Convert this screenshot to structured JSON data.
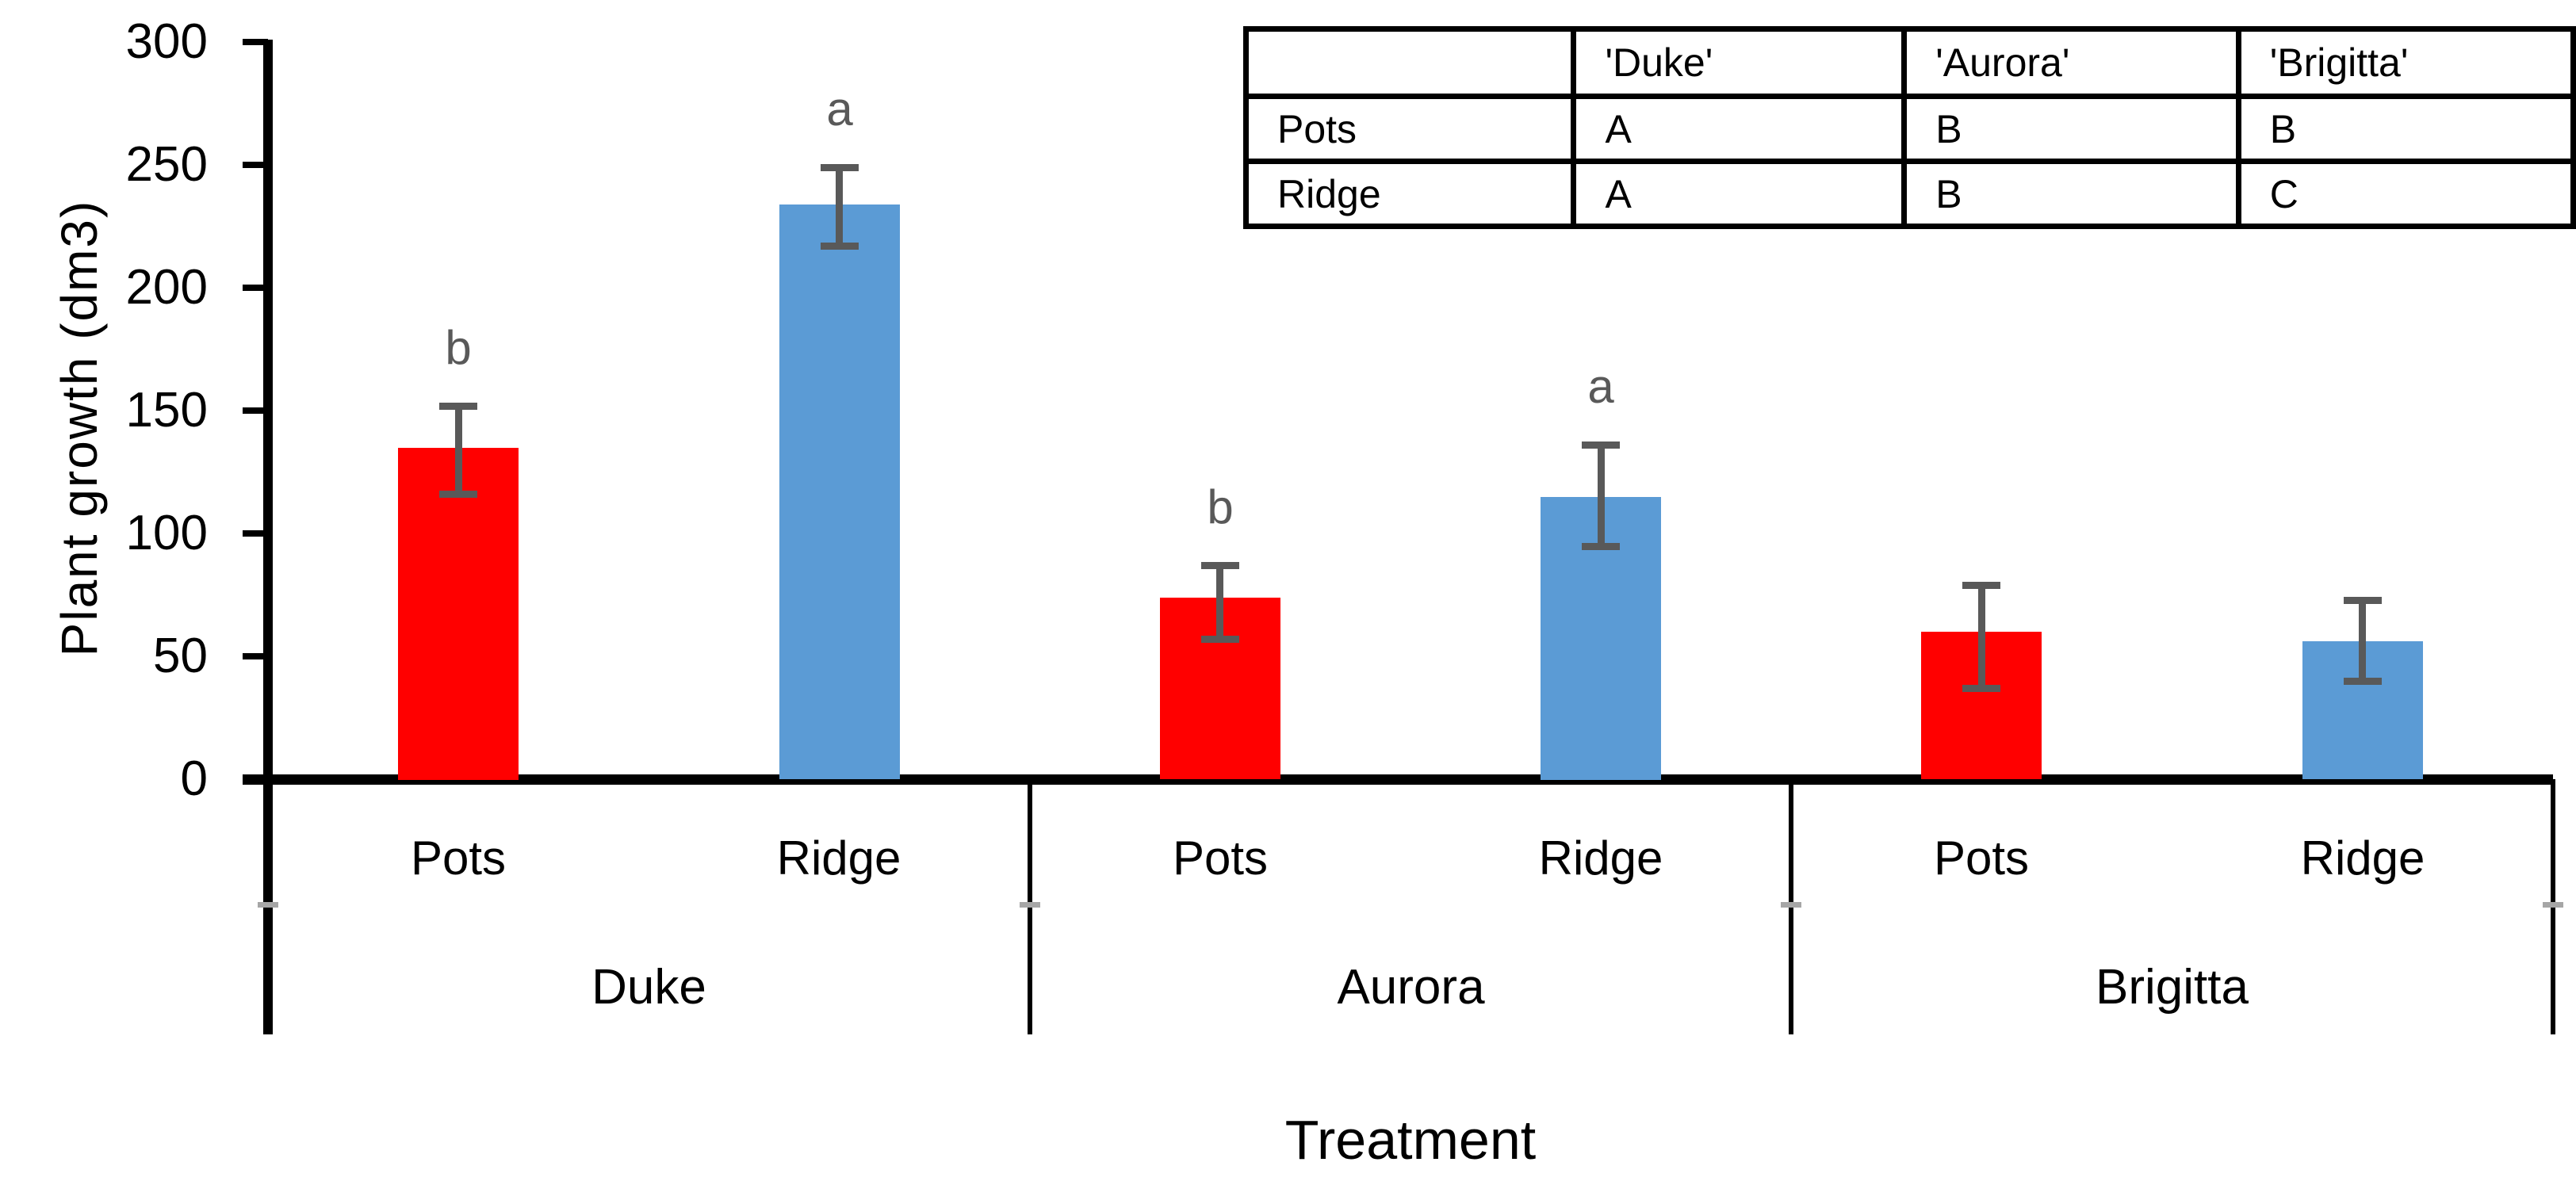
{
  "chart_data": {
    "type": "bar",
    "title": "",
    "xlabel": "Treatment",
    "ylabel": "Plant growth (dm3)",
    "ylim": [
      0,
      300
    ],
    "ytick_step": 50,
    "yticks": [
      0,
      50,
      100,
      150,
      200,
      250,
      300
    ],
    "grid": false,
    "legend": "none",
    "groups": [
      "Duke",
      "Aurora",
      "Brigitta"
    ],
    "subcategories": [
      "Pots",
      "Ridge"
    ],
    "series": [
      {
        "name": "Pots",
        "color": "#FF0000",
        "values": [
          135,
          74,
          60
        ],
        "error_low": [
          116,
          57,
          37
        ],
        "error_high": [
          152,
          87,
          79
        ],
        "letters": [
          "b",
          "b",
          ""
        ]
      },
      {
        "name": "Ridge",
        "color": "#5B9BD5",
        "values": [
          234,
          115,
          56
        ],
        "error_low": [
          217,
          95,
          40
        ],
        "error_high": [
          249,
          136,
          73
        ],
        "letters": [
          "a",
          "a",
          ""
        ]
      }
    ],
    "error_bar_color": "#595959",
    "letter_color": "#595959",
    "axis_color": "#000000"
  },
  "inset_table": {
    "col_headers": [
      "'Duke'",
      "'Aurora'",
      "'Brigitta'"
    ],
    "rows": [
      {
        "label": "Pots",
        "cells": [
          "A",
          "B",
          "B"
        ]
      },
      {
        "label": "Ridge",
        "cells": [
          "A",
          "B",
          "C"
        ]
      }
    ]
  }
}
